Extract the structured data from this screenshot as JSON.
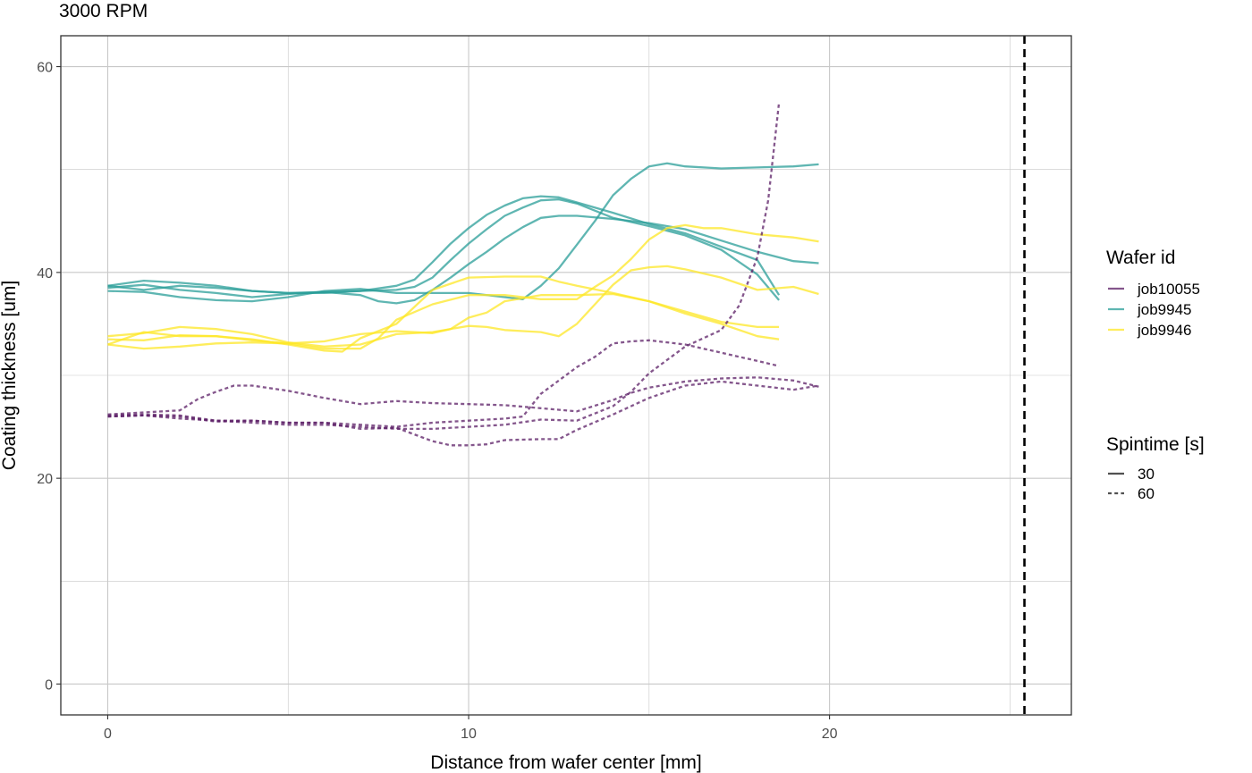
{
  "chart_data": {
    "type": "line",
    "title": "3000 RPM",
    "xlabel": "Distance from wafer center [mm]",
    "ylabel": "Coating thickness [um]",
    "xlim": [
      -1.3,
      26.7
    ],
    "ylim": [
      -3,
      63
    ],
    "x_ticks": [
      0,
      10,
      20
    ],
    "y_ticks": [
      0,
      20,
      40,
      60
    ],
    "x_minor": [
      5,
      15,
      25
    ],
    "y_minor": [
      10,
      30,
      50
    ],
    "grid": true,
    "vline": {
      "x": 25.4,
      "linetype": "dashed",
      "color": "#000000"
    },
    "legend_color": {
      "title": "Wafer id",
      "position": "right",
      "entries": [
        {
          "label": "job10055",
          "color": "#5b1e66"
        },
        {
          "label": "job9945",
          "color": "#2a9d98"
        },
        {
          "label": "job9946",
          "color": "#fde725"
        }
      ]
    },
    "legend_linetype": {
      "title": "Spintime [s]",
      "position": "right",
      "entries": [
        {
          "label": "30",
          "dash": "solid"
        },
        {
          "label": "60",
          "dash": "dashed"
        }
      ]
    },
    "series": [
      {
        "wafer": "job9945",
        "spintime": "30",
        "points": [
          [
            0,
            38.7
          ],
          [
            1,
            39.2
          ],
          [
            2,
            39.0
          ],
          [
            3,
            38.7
          ],
          [
            4,
            38.2
          ],
          [
            5,
            38.0
          ],
          [
            6,
            38.0
          ],
          [
            7,
            38.2
          ],
          [
            8,
            38.3
          ],
          [
            8.5,
            38.6
          ],
          [
            9,
            39.5
          ],
          [
            9.5,
            41.2
          ],
          [
            10,
            42.8
          ],
          [
            10.5,
            44.2
          ],
          [
            11,
            45.5
          ],
          [
            11.5,
            46.3
          ],
          [
            12,
            47.0
          ],
          [
            12.5,
            47.1
          ],
          [
            13,
            46.7
          ],
          [
            14,
            45.3
          ],
          [
            15,
            44.5
          ],
          [
            16,
            43.6
          ],
          [
            17,
            42.2
          ],
          [
            17.5,
            41.0
          ],
          [
            18,
            39.8
          ],
          [
            18.6,
            37.3
          ]
        ]
      },
      {
        "wafer": "job9945",
        "spintime": "30",
        "points": [
          [
            0,
            38.7
          ],
          [
            1,
            38.3
          ],
          [
            2,
            38.7
          ],
          [
            3,
            38.5
          ],
          [
            4,
            38.2
          ],
          [
            5,
            38.0
          ],
          [
            6,
            38.1
          ],
          [
            7,
            38.2
          ],
          [
            8,
            38.7
          ],
          [
            8.5,
            39.3
          ],
          [
            9,
            41.0
          ],
          [
            9.5,
            42.8
          ],
          [
            10,
            44.3
          ],
          [
            10.5,
            45.6
          ],
          [
            11,
            46.5
          ],
          [
            11.5,
            47.2
          ],
          [
            12,
            47.4
          ],
          [
            12.5,
            47.3
          ],
          [
            13,
            46.8
          ],
          [
            14,
            45.8
          ],
          [
            15,
            44.7
          ],
          [
            16,
            43.8
          ],
          [
            17,
            42.5
          ],
          [
            18,
            41.2
          ],
          [
            18.6,
            37.8
          ]
        ]
      },
      {
        "wafer": "job9945",
        "spintime": "30",
        "points": [
          [
            0,
            38.5
          ],
          [
            1,
            38.8
          ],
          [
            2,
            38.3
          ],
          [
            3,
            38.0
          ],
          [
            4,
            37.6
          ],
          [
            5,
            37.9
          ],
          [
            6,
            38.1
          ],
          [
            7,
            37.8
          ],
          [
            7.5,
            37.2
          ],
          [
            8,
            37.0
          ],
          [
            8.5,
            37.3
          ],
          [
            9,
            38.3
          ],
          [
            9.5,
            39.5
          ],
          [
            10,
            40.8
          ],
          [
            10.5,
            42.0
          ],
          [
            11,
            43.3
          ],
          [
            11.5,
            44.4
          ],
          [
            12,
            45.3
          ],
          [
            12.5,
            45.5
          ],
          [
            13,
            45.5
          ],
          [
            14,
            45.2
          ],
          [
            15,
            44.8
          ],
          [
            16,
            44.2
          ],
          [
            17,
            43.1
          ],
          [
            18,
            42.0
          ],
          [
            19,
            41.1
          ],
          [
            19.7,
            40.9
          ]
        ]
      },
      {
        "wafer": "job9945",
        "spintime": "30",
        "points": [
          [
            0,
            38.2
          ],
          [
            1,
            38.1
          ],
          [
            2,
            37.6
          ],
          [
            3,
            37.3
          ],
          [
            4,
            37.2
          ],
          [
            5,
            37.6
          ],
          [
            6,
            38.2
          ],
          [
            7,
            38.4
          ],
          [
            8,
            38.0
          ],
          [
            9,
            38.0
          ],
          [
            10,
            38.0
          ],
          [
            11,
            37.6
          ],
          [
            11.5,
            37.4
          ],
          [
            12,
            38.7
          ],
          [
            12.5,
            40.4
          ],
          [
            13,
            42.7
          ],
          [
            13.5,
            45.0
          ],
          [
            14,
            47.5
          ],
          [
            14.5,
            49.1
          ],
          [
            15,
            50.3
          ],
          [
            15.5,
            50.6
          ],
          [
            16,
            50.3
          ],
          [
            17,
            50.1
          ],
          [
            18,
            50.2
          ],
          [
            19,
            50.3
          ],
          [
            19.7,
            50.5
          ]
        ]
      },
      {
        "wafer": "job9946",
        "spintime": "30",
        "points": [
          [
            0,
            33.8
          ],
          [
            1,
            34.1
          ],
          [
            2,
            34.7
          ],
          [
            3,
            34.5
          ],
          [
            4,
            34.0
          ],
          [
            5,
            33.2
          ],
          [
            6,
            32.8
          ],
          [
            7,
            33.0
          ],
          [
            8,
            34.0
          ],
          [
            9,
            34.2
          ],
          [
            10,
            34.8
          ],
          [
            10.5,
            34.7
          ],
          [
            11,
            34.4
          ],
          [
            11.5,
            34.3
          ],
          [
            12,
            34.2
          ],
          [
            12.5,
            33.8
          ],
          [
            13,
            35.0
          ],
          [
            13.5,
            36.9
          ],
          [
            14,
            38.8
          ],
          [
            14.5,
            40.2
          ],
          [
            15,
            40.5
          ],
          [
            15.5,
            40.6
          ],
          [
            16,
            40.3
          ],
          [
            17,
            39.5
          ],
          [
            18,
            38.3
          ],
          [
            19,
            38.6
          ],
          [
            19.7,
            37.9
          ]
        ]
      },
      {
        "wafer": "job9946",
        "spintime": "30",
        "points": [
          [
            0,
            33.5
          ],
          [
            1,
            33.4
          ],
          [
            2,
            33.9
          ],
          [
            3,
            33.8
          ],
          [
            4,
            33.5
          ],
          [
            5,
            33.0
          ],
          [
            6,
            32.4
          ],
          [
            6.5,
            32.3
          ],
          [
            7,
            33.6
          ],
          [
            8,
            35.0
          ],
          [
            9,
            38.3
          ],
          [
            10,
            39.5
          ],
          [
            11,
            39.6
          ],
          [
            12,
            39.6
          ],
          [
            12.5,
            39.1
          ],
          [
            13,
            38.7
          ],
          [
            14,
            38.0
          ],
          [
            15,
            37.2
          ],
          [
            16,
            36.2
          ],
          [
            17,
            35.2
          ],
          [
            18,
            34.7
          ],
          [
            18.6,
            34.7
          ]
        ]
      },
      {
        "wafer": "job9946",
        "spintime": "30",
        "points": [
          [
            0,
            33.0
          ],
          [
            1,
            32.6
          ],
          [
            2,
            32.8
          ],
          [
            3,
            33.1
          ],
          [
            4,
            33.2
          ],
          [
            5,
            33.1
          ],
          [
            6,
            33.3
          ],
          [
            7,
            34.0
          ],
          [
            8,
            34.3
          ],
          [
            9,
            34.1
          ],
          [
            9.5,
            34.5
          ],
          [
            10,
            35.6
          ],
          [
            10.5,
            36.1
          ],
          [
            11,
            37.2
          ],
          [
            12,
            37.8
          ],
          [
            13,
            37.8
          ],
          [
            14,
            37.9
          ],
          [
            15,
            37.2
          ],
          [
            16,
            36.0
          ],
          [
            17,
            35.0
          ],
          [
            18,
            33.8
          ],
          [
            18.6,
            33.5
          ]
        ]
      },
      {
        "wafer": "job9946",
        "spintime": "30",
        "points": [
          [
            0,
            33.0
          ],
          [
            1,
            34.2
          ],
          [
            2,
            33.8
          ],
          [
            3,
            33.8
          ],
          [
            4,
            33.4
          ],
          [
            5,
            33.1
          ],
          [
            6,
            32.6
          ],
          [
            6.5,
            32.6
          ],
          [
            7,
            32.6
          ],
          [
            7.5,
            33.6
          ],
          [
            8,
            35.4
          ],
          [
            9,
            36.9
          ],
          [
            10,
            37.8
          ],
          [
            11,
            37.8
          ],
          [
            12,
            37.4
          ],
          [
            13,
            37.4
          ],
          [
            13.5,
            38.6
          ],
          [
            14,
            39.7
          ],
          [
            14.5,
            41.3
          ],
          [
            15,
            43.2
          ],
          [
            15.5,
            44.3
          ],
          [
            16,
            44.6
          ],
          [
            16.5,
            44.3
          ],
          [
            17,
            44.3
          ],
          [
            18,
            43.7
          ],
          [
            19,
            43.4
          ],
          [
            19.7,
            43.0
          ]
        ]
      },
      {
        "wafer": "job10055",
        "spintime": "60",
        "points": [
          [
            0,
            26.2
          ],
          [
            1,
            26.4
          ],
          [
            2,
            26.6
          ],
          [
            2.5,
            27.7
          ],
          [
            3,
            28.4
          ],
          [
            3.5,
            29.0
          ],
          [
            4,
            29.0
          ],
          [
            5,
            28.5
          ],
          [
            6,
            27.8
          ],
          [
            7,
            27.2
          ],
          [
            8,
            27.5
          ],
          [
            9,
            27.3
          ],
          [
            10,
            27.2
          ],
          [
            11,
            27.1
          ],
          [
            12,
            26.8
          ],
          [
            13,
            26.5
          ],
          [
            14,
            27.6
          ],
          [
            14.5,
            28.3
          ],
          [
            15,
            28.8
          ],
          [
            16,
            29.4
          ],
          [
            17,
            29.7
          ],
          [
            18,
            29.8
          ],
          [
            19,
            29.5
          ],
          [
            19.7,
            28.9
          ]
        ]
      },
      {
        "wafer": "job10055",
        "spintime": "60",
        "points": [
          [
            0,
            26.1
          ],
          [
            1,
            26.2
          ],
          [
            2,
            26.1
          ],
          [
            3,
            25.6
          ],
          [
            4,
            25.4
          ],
          [
            5,
            25.2
          ],
          [
            6,
            25.2
          ],
          [
            7,
            25.0
          ],
          [
            8,
            24.8
          ],
          [
            9,
            24.8
          ],
          [
            10,
            25.0
          ],
          [
            11,
            25.2
          ],
          [
            12,
            25.7
          ],
          [
            13,
            25.6
          ],
          [
            14,
            27.0
          ],
          [
            14.5,
            28.4
          ],
          [
            15,
            30.2
          ],
          [
            16,
            32.8
          ],
          [
            17,
            34.4
          ],
          [
            17.5,
            36.8
          ],
          [
            18,
            41.5
          ],
          [
            18.3,
            47.0
          ],
          [
            18.6,
            56.5
          ]
        ]
      },
      {
        "wafer": "job10055",
        "spintime": "60",
        "points": [
          [
            0,
            26.0
          ],
          [
            1,
            26.1
          ],
          [
            2,
            26.0
          ],
          [
            3,
            25.5
          ],
          [
            4,
            25.6
          ],
          [
            5,
            25.4
          ],
          [
            6,
            25.4
          ],
          [
            7,
            24.8
          ],
          [
            8,
            24.9
          ],
          [
            9,
            23.6
          ],
          [
            9.5,
            23.2
          ],
          [
            10,
            23.2
          ],
          [
            10.5,
            23.3
          ],
          [
            11,
            23.7
          ],
          [
            12,
            23.8
          ],
          [
            12.5,
            23.8
          ],
          [
            13,
            24.7
          ],
          [
            14,
            26.2
          ],
          [
            15,
            27.8
          ],
          [
            16,
            29.0
          ],
          [
            17,
            29.4
          ],
          [
            18,
            29.0
          ],
          [
            19,
            28.6
          ],
          [
            19.7,
            29.0
          ]
        ]
      },
      {
        "wafer": "job10055",
        "spintime": "60",
        "points": [
          [
            0,
            26.0
          ],
          [
            1,
            26.1
          ],
          [
            2,
            25.8
          ],
          [
            3,
            25.6
          ],
          [
            4,
            25.6
          ],
          [
            5,
            25.4
          ],
          [
            6,
            25.4
          ],
          [
            7,
            25.2
          ],
          [
            8,
            25.0
          ],
          [
            9,
            25.4
          ],
          [
            10,
            25.6
          ],
          [
            11,
            25.8
          ],
          [
            11.5,
            26.0
          ],
          [
            12,
            28.2
          ],
          [
            13,
            30.8
          ],
          [
            13.5,
            31.8
          ],
          [
            14,
            33.1
          ],
          [
            14.5,
            33.3
          ],
          [
            15,
            33.4
          ],
          [
            16,
            33.0
          ],
          [
            17,
            32.2
          ],
          [
            18,
            31.4
          ],
          [
            18.6,
            30.9
          ]
        ]
      }
    ]
  }
}
